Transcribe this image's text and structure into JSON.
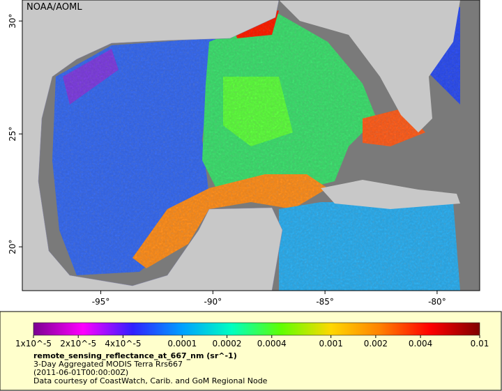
{
  "map": {
    "attribution": "NOAA/AOML",
    "xlim": [
      -98.5,
      -78.1
    ],
    "ylim": [
      18.06,
      30.93
    ],
    "xticks": [
      {
        "value": -95,
        "label": "-95°"
      },
      {
        "value": -90,
        "label": "-90°"
      },
      {
        "value": -85,
        "label": "-85°"
      },
      {
        "value": -80,
        "label": "-80°"
      }
    ],
    "yticks": [
      {
        "value": 30,
        "label": "30°"
      },
      {
        "value": 25,
        "label": "25°"
      },
      {
        "value": 20,
        "label": "20°"
      }
    ]
  },
  "colorbar": {
    "scale": "log",
    "lim": [
      1e-05,
      0.01
    ],
    "ticks": [
      {
        "value": 1e-05,
        "label": "1x10^-5"
      },
      {
        "value": 2e-05,
        "label": "2x10^-5"
      },
      {
        "value": 4e-05,
        "label": "4x10^-5"
      },
      0.0001,
      0.0002,
      0.0004,
      0.001,
      0.002,
      0.004,
      0.01
    ],
    "colors": [
      "#7a0090",
      "#ff00ff",
      "#3020ff",
      "#00a0ff",
      "#00ffc0",
      "#60ff00",
      "#ffd800",
      "#ff8000",
      "#ff0000",
      "#800000"
    ]
  },
  "caption": {
    "title": "remote_sensing_reflectance_at_667_nm (sr^-1)",
    "lines": [
      "3-Day Aggregated MODIS Terra Rrs667",
      "(2011-06-01T00:00:00Z)",
      "Data courtesy of CoastWatch, Carib. and GoM Regional Node"
    ]
  }
}
